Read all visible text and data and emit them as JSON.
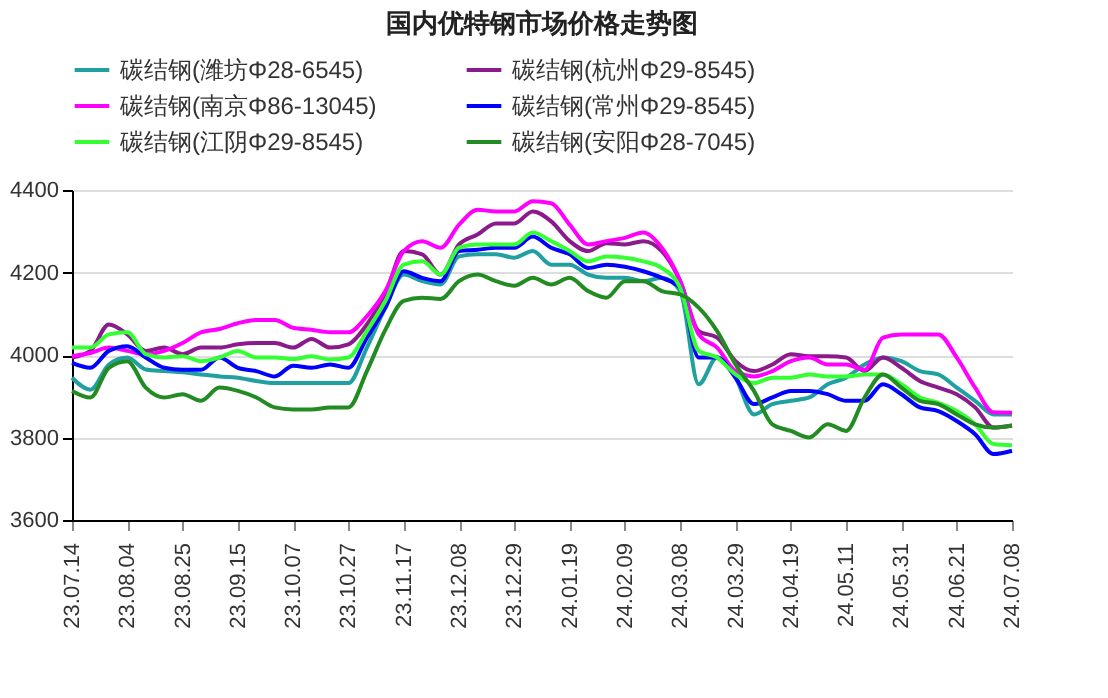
{
  "chart_data": {
    "type": "line",
    "title": "国内优特钢市场价格走势图",
    "categories": [
      "23.07.14",
      null,
      null,
      "23.08.04",
      null,
      null,
      "23.08.25",
      null,
      null,
      "23.09.15",
      null,
      null,
      "23.10.07",
      null,
      null,
      "23.10.27",
      null,
      null,
      "23.11.17",
      null,
      null,
      "23.12.08",
      null,
      null,
      "23.12.29",
      null,
      null,
      "24.01.19",
      null,
      null,
      "24.02.09",
      null,
      null,
      "24.03.08",
      null,
      null,
      "24.03.29",
      null,
      null,
      "24.04.19",
      null,
      null,
      "24.05.11",
      null,
      null,
      "24.05.31",
      null,
      null,
      "24.06.21",
      null,
      null,
      "24.07.08"
    ],
    "series": [
      {
        "name": "碳结钢(潍坊Φ28-6545)",
        "color": "#20a0a0",
        "values": [
          3945,
          3916,
          3977,
          3994,
          3965,
          3961,
          3958,
          3953,
          3948,
          3945,
          3937,
          3932,
          3932,
          3932,
          3932,
          3932,
          4018,
          4115,
          4195,
          4179,
          4171,
          4239,
          4244,
          4244,
          4236,
          4252,
          4219,
          4219,
          4195,
          4187,
          4187,
          4179,
          4187,
          4155,
          3929,
          3994,
          3945,
          3856,
          3881,
          3889,
          3897,
          3929,
          3945,
          3977,
          3994,
          3985,
          3961,
          3953,
          3921,
          3889,
          3856,
          3856
        ]
      },
      {
        "name": "碳结钢(杭州Φ29-8545)",
        "color": "#8b1a8b",
        "values": [
          3994,
          4010,
          4074,
          4050,
          4010,
          4018,
          4002,
          4018,
          4018,
          4026,
          4029,
          4029,
          4018,
          4039,
          4018,
          4026,
          4074,
          4147,
          4252,
          4244,
          4195,
          4268,
          4292,
          4319,
          4319,
          4348,
          4324,
          4276,
          4252,
          4271,
          4268,
          4276,
          4252,
          4179,
          4058,
          4042,
          3985,
          3961,
          3977,
          4002,
          3997,
          3997,
          3994,
          3961,
          3994,
          3969,
          3937,
          3921,
          3905,
          3873,
          3824,
          3829
        ]
      },
      {
        "name": "碳结钢(南京Φ86-13045)",
        "color": "#ff00ff",
        "values": [
          3997,
          4005,
          4018,
          4010,
          4002,
          4010,
          4029,
          4055,
          4063,
          4077,
          4085,
          4085,
          4066,
          4061,
          4055,
          4055,
          4094,
          4155,
          4252,
          4276,
          4260,
          4316,
          4352,
          4348,
          4348,
          4373,
          4368,
          4316,
          4268,
          4276,
          4284,
          4297,
          4260,
          4179,
          4050,
          4018,
          3961,
          3948,
          3961,
          3985,
          3994,
          3977,
          3977,
          3964,
          4042,
          4050,
          4050,
          4050,
          3994,
          3921,
          3861,
          3860
        ]
      },
      {
        "name": "碳结钢(常州Φ29-8545)",
        "color": "#0000ff",
        "values": [
          3981,
          3969,
          4010,
          4021,
          3994,
          3969,
          3964,
          3964,
          3994,
          3969,
          3961,
          3948,
          3974,
          3969,
          3977,
          3969,
          4042,
          4115,
          4203,
          4187,
          4179,
          4252,
          4255,
          4260,
          4260,
          4287,
          4260,
          4244,
          4211,
          4219,
          4214,
          4203,
          4187,
          4163,
          3994,
          3994,
          3945,
          3881,
          3897,
          3913,
          3913,
          3905,
          3889,
          3889,
          3929,
          3905,
          3873,
          3864,
          3840,
          3808,
          3760,
          3768
        ]
      },
      {
        "name": "碳结钢(江阴Φ29-8545)",
        "color": "#33ff33",
        "values": [
          4018,
          4018,
          4050,
          4055,
          4002,
          3994,
          3997,
          3985,
          3994,
          4010,
          3994,
          3994,
          3990,
          3997,
          3989,
          3994,
          4058,
          4131,
          4219,
          4227,
          4195,
          4260,
          4268,
          4268,
          4268,
          4297,
          4276,
          4252,
          4227,
          4239,
          4236,
          4227,
          4211,
          4163,
          4010,
          3994,
          3953,
          3932,
          3945,
          3945,
          3953,
          3948,
          3948,
          3953,
          3953,
          3929,
          3897,
          3884,
          3864,
          3832,
          3784,
          3781
        ]
      },
      {
        "name": "碳结钢(安阳Φ28-7045)",
        "color": "#228b22",
        "values": [
          3913,
          3897,
          3969,
          3985,
          3921,
          3897,
          3905,
          3889,
          3921,
          3913,
          3897,
          3873,
          3868,
          3868,
          3873,
          3873,
          3961,
          4061,
          4131,
          4139,
          4136,
          4179,
          4195,
          4179,
          4168,
          4187,
          4171,
          4187,
          4155,
          4139,
          4179,
          4179,
          4155,
          4147,
          4115,
          4058,
          3977,
          3913,
          3832,
          3816,
          3800,
          3832,
          3816,
          3897,
          3953,
          3921,
          3889,
          3881,
          3856,
          3832,
          3824,
          3829
        ]
      }
    ],
    "ylim": [
      3600,
      4400
    ],
    "yticks": [
      3600,
      3800,
      4000,
      4200,
      4400
    ],
    "grid": "y",
    "legend": "top",
    "line_style": "solid",
    "marker": "none"
  }
}
